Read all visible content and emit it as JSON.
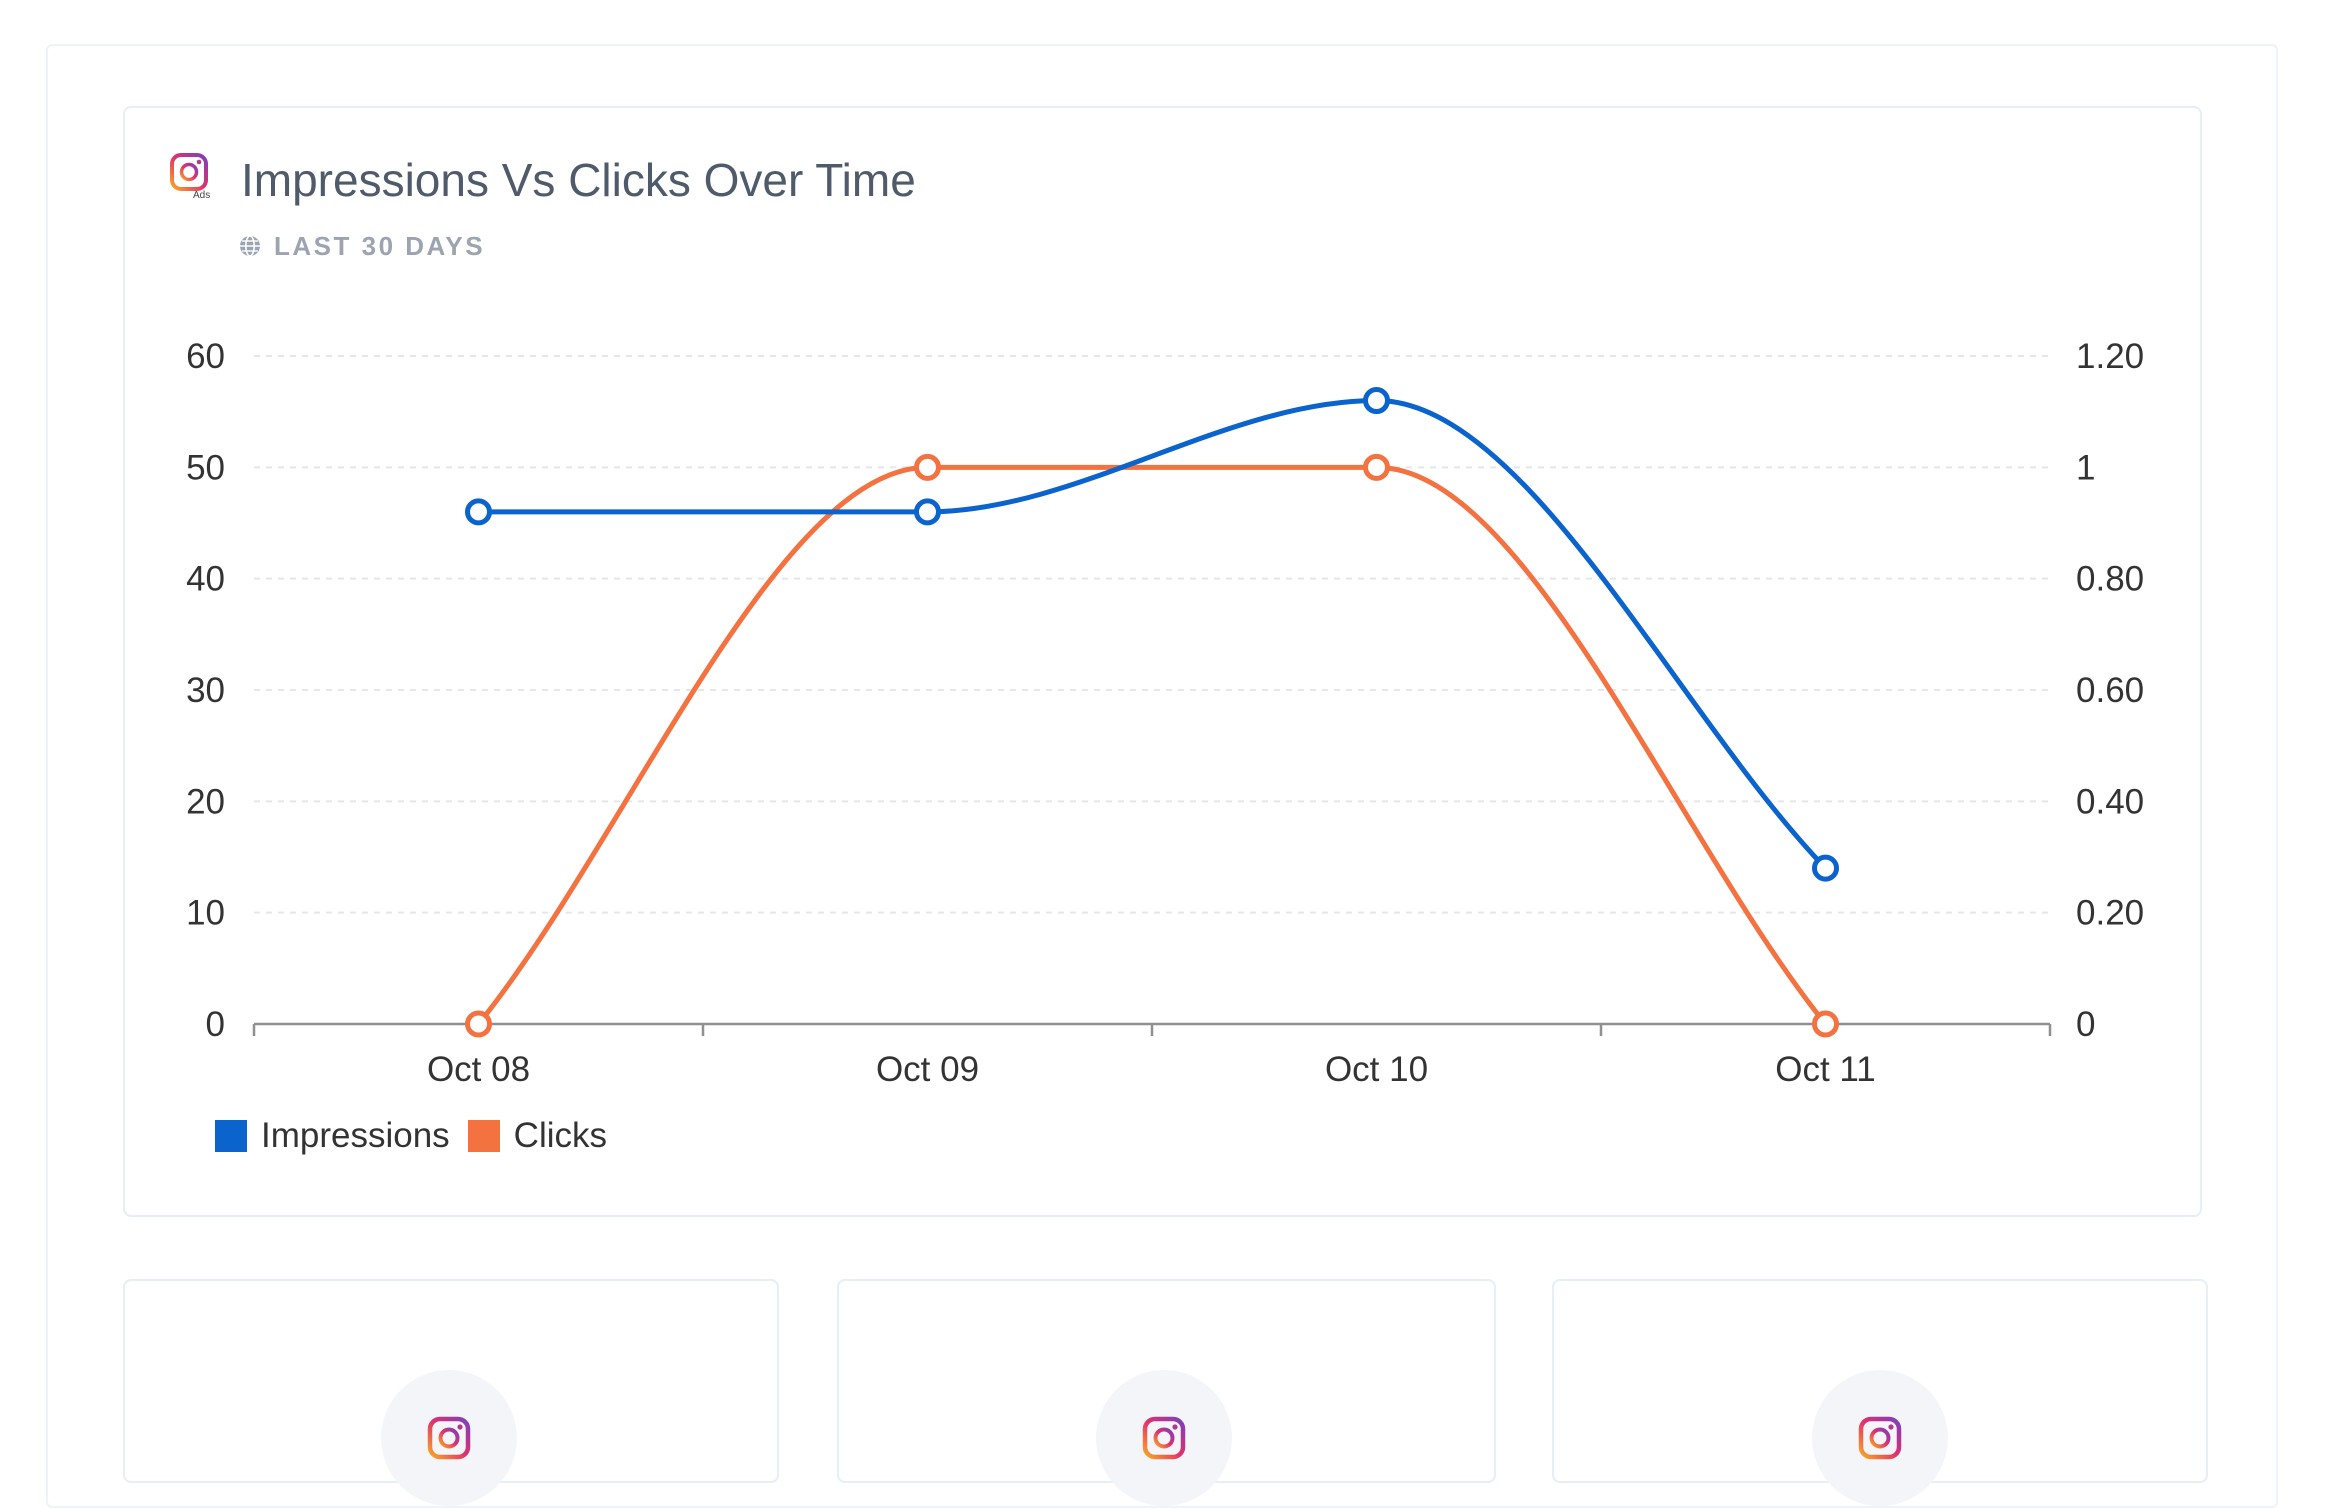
{
  "header": {
    "title": "Impressions Vs Clicks Over Time",
    "subtitle": "LAST 30 DAYS",
    "logo_icon": "instagram-ads-icon",
    "logo_badge": "Ads",
    "subtitle_icon": "globe-icon"
  },
  "colors": {
    "impressions": "#0b63ce",
    "clicks": "#f47140",
    "grid": "#e3e6ea",
    "axis": "#8f8f8f",
    "tick_text": "#333333"
  },
  "chart_data": {
    "type": "line",
    "title": "Impressions Vs Clicks Over Time",
    "categories": [
      "Oct 08",
      "Oct 09",
      "Oct 10",
      "Oct 11"
    ],
    "series": [
      {
        "name": "Impressions",
        "axis": "left",
        "values": [
          46,
          46,
          56,
          14
        ]
      },
      {
        "name": "Clicks",
        "axis": "right",
        "values": [
          0,
          1,
          1,
          0
        ]
      }
    ],
    "y_left": {
      "ylim": [
        0,
        60
      ],
      "ticks": [
        "0",
        "10",
        "20",
        "30",
        "40",
        "50",
        "60"
      ]
    },
    "y_right": {
      "ylim": [
        0,
        1.2
      ],
      "ticks": [
        "0",
        "0.20",
        "0.40",
        "0.60",
        "0.80",
        "1",
        "1.20"
      ]
    },
    "grid": true,
    "smooth": true,
    "legend_position": "bottom-left"
  },
  "mini_cards": [
    {
      "icon": "instagram-icon"
    },
    {
      "icon": "instagram-icon"
    },
    {
      "icon": "instagram-icon"
    }
  ]
}
